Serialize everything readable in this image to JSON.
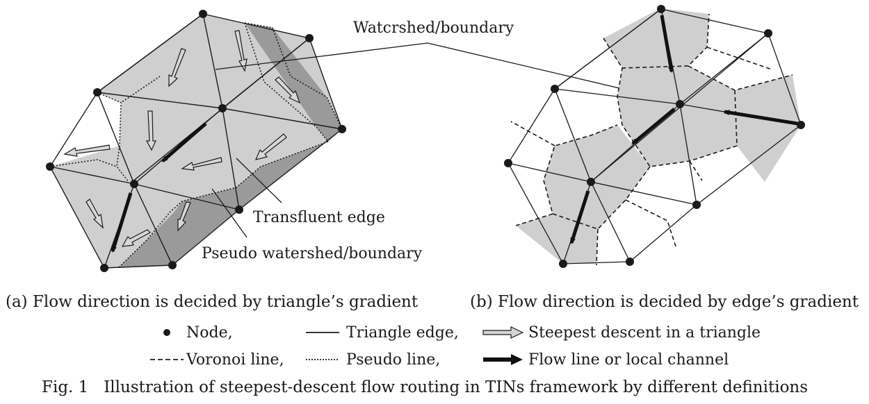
{
  "labels": {
    "watershed": "Watcrshed/boundary",
    "transfluent": "Transfluent edge",
    "pseudo_watershed": "Pseudo watershed/boundary"
  },
  "subcaptions": {
    "a": "(a) Flow direction is decided by triangle’s gradient",
    "b": "(b) Flow direction is decided by edge’s gradient"
  },
  "legend": {
    "node": "Node,",
    "triangle_edge": "Triangle edge,",
    "steepest": "Steepest descent in a triangle",
    "voronoi": "Voronoi line,",
    "pseudo": "Pseudo line,",
    "flow": "Flow line or local channel"
  },
  "caption": "Fig. 1   Illustration of steepest-descent flow routing in TINs framework by different definitions",
  "colors": {
    "light_fill": "#cfcfcf",
    "dark_fill": "#9a9a9a",
    "line": "#1a1a1a",
    "white_arrow_fill": "#d4d4d4"
  }
}
